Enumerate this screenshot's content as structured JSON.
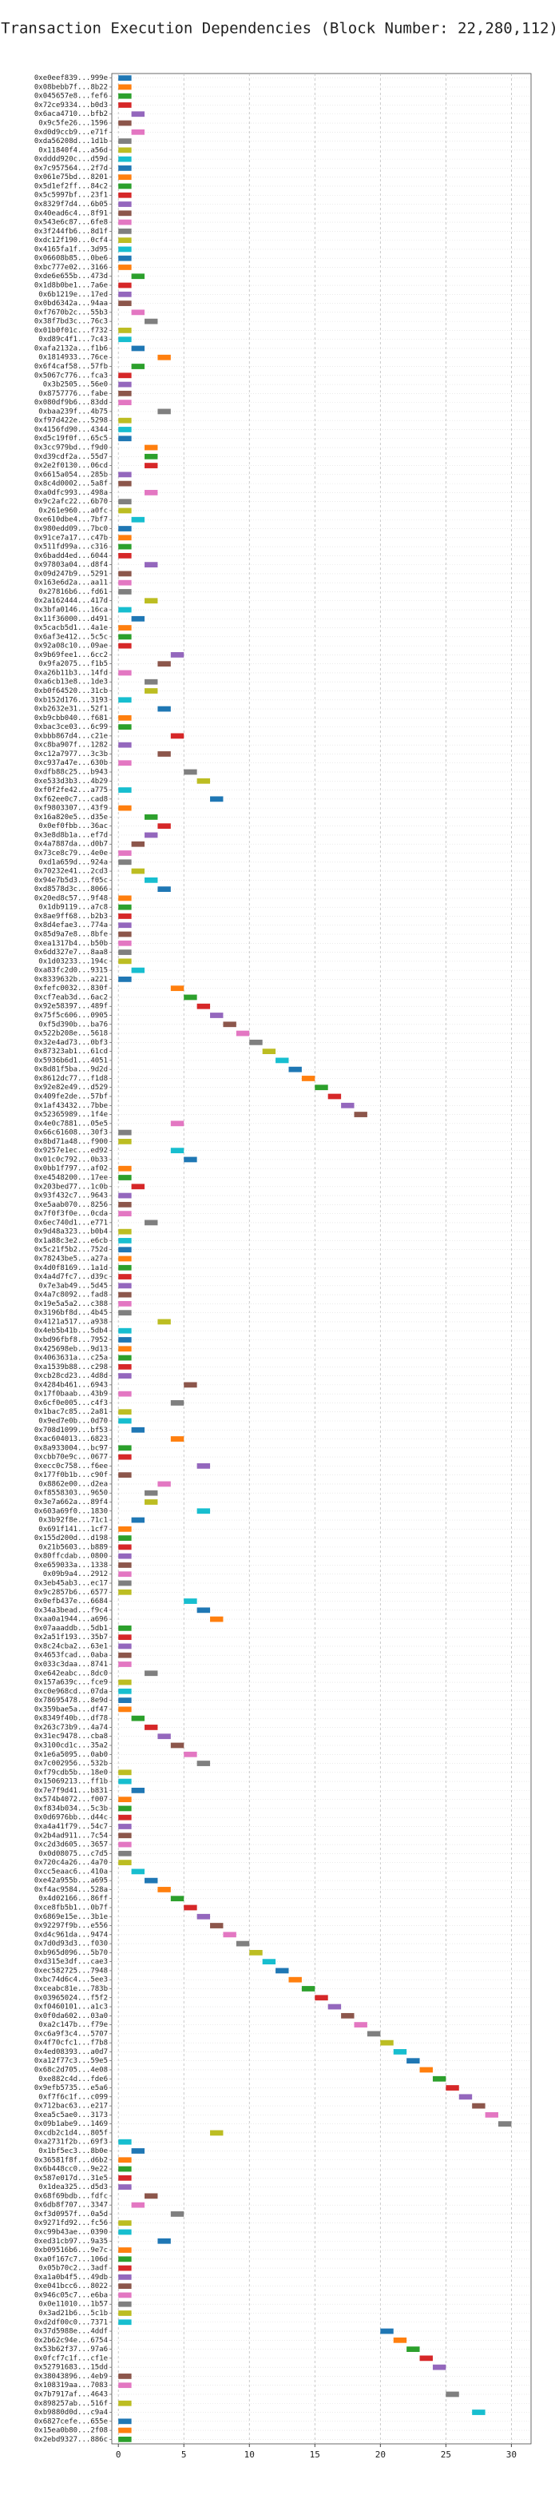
{
  "chart_data": {
    "type": "gantt",
    "title": "Transaction Execution Dependencies (Block Number: 22,280,112)",
    "xlim": [
      -0.5,
      31.5
    ],
    "xticks": [
      0,
      5,
      10,
      15,
      20,
      25,
      30
    ],
    "grid": true,
    "colors": [
      "#1f77b4",
      "#ff7f0e",
      "#2ca02c",
      "#d62728",
      "#9467bd",
      "#8c564b",
      "#e377c2",
      "#7f7f7f",
      "#bcbd22",
      "#17becf"
    ],
    "categories": [
      "0xe0eef839...999e",
      "0x08bebb7f...8b22",
      "0x045657e8...fef6",
      "0x72ce9334...b0d3",
      "0x6aca4710...bfb2",
      "0x9c5fe26...1596",
      "0xd0d9ccb9...e71f",
      "0xda56208d...1d1b",
      "0x11840f4...a56d",
      "0xdddd920c...d59d",
      "0x7c957564...2f7d",
      "0x061e75bd...8201",
      "0x5d1ef2ff...84c2",
      "0x5c5997bf...23f1",
      "0x8329f7d4...6b05",
      "0x40ead6c4...8f91",
      "0x543e6c87...6fe8",
      "0x3f244fb6...8d1f",
      "0xdc12f190...0cf4",
      "0x4165fa1f...3d95",
      "0x06608b85...0be6",
      "0xbc777e02...3166",
      "0xde6e655b...473d",
      "0x1d8b0be1...7a6e",
      "0x6b1219e...17ed",
      "0x0bd6342a...94aa",
      "0xf7670b2c...55b3",
      "0x38f7bd3c...76c3",
      "0x01b0f01c...f732",
      "0xd89c4f1...7c43",
      "0xafa2132a...f1b6",
      "0x1814933...76ce",
      "0x6f4caf58...57fb",
      "0x5067c776...fca3",
      "0x3b2505...56e0",
      "0x8757776...fabe",
      "0x080df9b6...83dd",
      "0xbaa239f...4b75",
      "0xf97d422e...5298",
      "0x4156fd90...4344",
      "0xd5c19f0f...65c5",
      "0x3cc979bd...f9d0",
      "0xd39cdf2a...55d7",
      "0x2e2f0130...06cd",
      "0x6615a054...285b",
      "0x8c4d0002...5a8f",
      "0xa0dfc993...498a",
      "0x9c2afc22...6b70",
      "0x261e960...a0fc",
      "0xe610dbe4...7bf7",
      "0x980edd09...7bc0",
      "0x91ce7a17...c47b",
      "0x511fd99a...c316",
      "0x6badd4ed...6044",
      "0x97803a04...d8f4",
      "0x09d247b9...5291",
      "0x163e6d2a...aa11",
      "0x27816b6...fd61",
      "0x2a162444...417d",
      "0x3bfa0146...16ca",
      "0x11f36000...d491",
      "0x5cacb5d1...4a1e",
      "0x6af3e412...5c5c",
      "0x92a08c10...09ae",
      "0x9b69fee1...6cc2",
      "0x9fa2075...f1b5",
      "0xa26b11b3...14fd",
      "0xa6cb13e8...1de3",
      "0xb0f64520...31cb",
      "0xb152d176...3193",
      "0xb2632e31...52f1",
      "0xb9cbb040...f681",
      "0xbac3ce03...6c99",
      "0xbbb867d4...c21e",
      "0xc8ba907f...1282",
      "0xc12a7977...3c3b",
      "0xc937a47e...630b",
      "0xdfb88c25...b943",
      "0xe533d3b3...4b29",
      "0xf0f2fe42...a775",
      "0xf62ee0c7...cad8",
      "0xf9803307...43f9",
      "0x16a820e5...d35e",
      "0x0ef0fbb...36ac",
      "0x3e8d8b1a...ef7d",
      "0x4a7887da...d0b7",
      "0x73ce8c79...4e0e",
      "0xd1a659d...924a",
      "0x70232e41...2cd3",
      "0x94e7b5d3...f05c",
      "0xd8578d3c...8066",
      "0x20ed8c57...9f48",
      "0x1db9119...a7c8",
      "0x8ae9ff68...b2b3",
      "0x8d4efae3...774a",
      "0x85d9a7e8...8bfe",
      "0xea1317b4...b50b",
      "0x6dd327e7...8aa8",
      "0x1d03233...194c",
      "0xa83fc2d0...9315",
      "0x8339632b...a221",
      "0xfefc0032...830f",
      "0xcf7eab3d...6ac2",
      "0x92e58397...489f",
      "0x75f5c606...0905",
      "0xf5d390b...ba76",
      "0x522b208e...5618",
      "0x32e4ad73...0bf3",
      "0x87323ab1...61cd",
      "0x5936b6d1...4051",
      "0x8d81f5ba...9d2d",
      "0x8612dc77...f1d8",
      "0x92e82e49...d529",
      "0x409fe2de...57bf",
      "0x1af43432...7bbe",
      "0x52365989...1f4e",
      "0x4e0c7881...05e5",
      "0x66c61608...30f3",
      "0x8bd71a48...f900",
      "0x9257e1ec...ed92",
      "0x01c0c792...0b33",
      "0x0bb1f797...af02",
      "0xe4548200...17ee",
      "0x203bed77...1c0b",
      "0x93f432c7...9643",
      "0xe5aab070...8256",
      "0x7f0f3f0e...0cda",
      "0x6ec740d1...e771",
      "0x9d48a323...b0b4",
      "0x1a88c3e2...e6cb",
      "0x5c21f5b2...752d",
      "0x78243be5...a27a",
      "0x4d0f8169...1a1d",
      "0x4a4d7fc7...d39c",
      "0x7e3ab49...5d45",
      "0x4a7c8092...fad8",
      "0x19e5a5a2...c388",
      "0x3196bf8d...4b45",
      "0x4121a517...a938",
      "0x4eb5b41b...5db4",
      "0xbd96fbf8...7952",
      "0x425698eb...9d13",
      "0x4063631a...c25a",
      "0xa1539b88...c298",
      "0xcb28cd23...4d8d",
      "0x4284b461...6943",
      "0x17f0baab...43b9",
      "0x6cf0e005...c4f3",
      "0x1bac7c85...2a81",
      "0x9ed7e0b...0d70",
      "0x708d1099...bf53",
      "0xac604013...6823",
      "0x8a933004...bc97",
      "0xcbb70e9c...0677",
      "0xecc0c758...f6ee",
      "0x177f0b1b...c90f",
      "0x8862e00...d2ea",
      "0xf8558303...9650",
      "0x3e7a662a...89f4",
      "0x603a69f0...1830",
      "0x3b92f8e...71c1",
      "0x691f141...1cf7",
      "0x155d200d...d198",
      "0x21b5603...b889",
      "0x80ffcdab...0800",
      "0xe659033a...1338",
      "0x09b9a4...2912",
      "0x3eb45ab3...ec17",
      "0x9c2857b6...6577",
      "0x0efb437e...6684",
      "0x34a3bead...f9c4",
      "0xaa0a1944...a696",
      "0x07aaaddb...5db1",
      "0x2a51f193...35b7",
      "0x8c24cba2...63e1",
      "0x4653fcad...0aba",
      "0x033c3daa...8741",
      "0xe642eabc...8dc0",
      "0x157a639c...fce9",
      "0xc0e968cd...07da",
      "0x78695478...8e9d",
      "0x359bae5a...df47",
      "0x8349f40b...df78",
      "0x263c73b9...4a74",
      "0x31ec9478...cba8",
      "0x3100cd1c...35a2",
      "0x1e6a5095...0ab0",
      "0x7c002956...532b",
      "0xf79cdb5b...18e0",
      "0x15069213...ff1b",
      "0x7e7f9d41...b831",
      "0x574b4072...f007",
      "0xf834b034...5c3b",
      "0x0d6976bb...d44c",
      "0xa4a41f79...54c7",
      "0x2b4ad911...7c54",
      "0xc2d3d605...3657",
      "0x0d08075...c7d5",
      "0x720c4a26...4a70",
      "0xcc5eaac6...410a",
      "0xe42a955b...a695",
      "0xf4ac9584...528a",
      "0x4d02166...86ff",
      "0xce8fb5b1...0b7f",
      "0x6869e15e...3b1e",
      "0x92297f9b...e556",
      "0xd4c961da...9474",
      "0x7d0d93d3...f030",
      "0xb965d096...5b70",
      "0xd315e3df...cae3",
      "0xec582725...7948",
      "0xbc74d6c4...5ee3",
      "0xceabc81e...783b",
      "0x03965024...f5f2",
      "0xf0460101...a1c3",
      "0x0f0da602...03a0",
      "0xa2c147b...f79e",
      "0xc6a9f3c4...5707",
      "0x4f70cfc1...f7b8",
      "0x4ed08393...a0d7",
      "0xa12f77c3...59e5",
      "0x68c2d705...4e08",
      "0xe882c4d...fde6",
      "0x9efb5735...e5a6",
      "0xf7f6c1f...c099",
      "0x712bac63...e217",
      "0xea5c5ae0...3173",
      "0x09b1abe9...1469",
      "0xcdb2c1d4...805f",
      "0xa2731f2b...69f3",
      "0x1bf5ec3...8b0e",
      "0x36581f8f...d6b2",
      "0x6b448cc0...9e22",
      "0x587e017d...31e5",
      "0x1dea325...d5d3",
      "0x68f69bdb...fdfc",
      "0x6db8f707...3347",
      "0xf3d0957f...0a5d",
      "0x9271fd92...fc56",
      "0xc99b43ae...0390",
      "0xed31cb97...9a35",
      "0xb09516b6...9e7c",
      "0xa0f167c7...106d",
      "0x05b70c2...3adf",
      "0xa1a0b4f5...49db",
      "0xe041bcc6...8022",
      "0x946c05c7...e6ba",
      "0x0e11010...1b57",
      "0x3ad21b6...5c1b",
      "0xd2df00c0...7371",
      "0x37d5988e...4ddf",
      "0x2b62c94e...6754",
      "0x53b62f37...97a6",
      "0x0fcf7c1f...cf1e",
      "0x52791683...15dd",
      "0x38043896...4eb9",
      "0x108319aa...7083",
      "0x7b7917af...4643",
      "0x898257ab...516f",
      "0xb9880d0d...c9a4",
      "0x6827cefe...655e",
      "0x15ea0b80...2f08",
      "0x2ebd9327...886c"
    ],
    "starts": [
      0,
      0,
      0,
      0,
      1,
      0,
      1,
      0,
      0,
      0,
      0,
      0,
      0,
      0,
      0,
      0,
      0,
      0,
      0,
      0,
      0,
      0,
      1,
      0,
      0,
      0,
      1,
      2,
      0,
      0,
      1,
      3,
      1,
      0,
      0,
      0,
      0,
      3,
      0,
      0,
      0,
      2,
      2,
      2,
      0,
      0,
      2,
      0,
      0,
      1,
      0,
      0,
      0,
      0,
      2,
      0,
      0,
      0,
      2,
      0,
      1,
      0,
      0,
      0,
      4,
      3,
      0,
      2,
      2,
      0,
      3,
      0,
      0,
      4,
      0,
      3,
      0,
      5,
      6,
      0,
      7,
      0,
      2,
      3,
      2,
      1,
      0,
      0,
      1,
      2,
      3,
      0,
      0,
      0,
      0,
      0,
      0,
      0,
      0,
      1,
      0,
      4,
      5,
      6,
      7,
      8,
      9,
      10,
      11,
      12,
      13,
      14,
      15,
      16,
      17,
      18,
      4,
      0,
      0,
      4,
      5,
      0,
      0,
      1,
      0,
      0,
      0,
      2,
      0,
      0,
      0,
      0,
      0,
      0,
      0,
      0,
      0,
      0,
      3,
      0,
      0,
      0,
      0,
      0,
      0,
      5,
      0,
      4,
      0,
      0,
      1,
      4,
      0,
      0,
      6,
      0,
      3,
      2,
      2,
      6,
      1,
      0,
      0,
      0,
      0,
      0,
      0,
      0,
      0,
      5,
      6,
      7,
      0,
      0,
      0,
      0,
      0,
      2,
      0,
      0,
      0,
      0,
      1,
      2,
      3,
      4,
      5,
      6,
      0,
      0,
      1,
      0,
      0,
      0,
      0,
      0,
      0,
      0,
      0,
      1,
      2,
      3,
      4,
      5,
      6,
      7,
      8,
      9,
      10,
      11,
      12,
      13,
      14,
      15,
      16,
      17,
      18,
      19,
      20,
      21,
      22,
      23,
      24,
      25,
      26,
      27,
      28,
      29,
      7,
      0,
      1,
      0,
      0,
      0,
      0,
      2,
      1,
      4,
      0,
      0,
      3,
      0,
      0,
      0,
      0,
      0,
      0,
      0,
      0,
      0,
      20,
      21,
      22,
      23,
      24,
      0,
      0,
      25,
      0,
      27,
      0,
      0,
      0
    ],
    "ends": [
      1,
      1,
      1,
      1,
      2,
      1,
      2,
      1,
      1,
      1,
      1,
      1,
      1,
      1,
      1,
      1,
      1,
      1,
      1,
      1,
      1,
      1,
      2,
      1,
      1,
      1,
      2,
      3,
      1,
      1,
      2,
      4,
      2,
      1,
      1,
      1,
      1,
      4,
      1,
      1,
      1,
      3,
      3,
      3,
      1,
      1,
      3,
      1,
      1,
      2,
      1,
      1,
      1,
      1,
      3,
      1,
      1,
      1,
      3,
      1,
      2,
      1,
      1,
      1,
      5,
      4,
      1,
      3,
      3,
      1,
      4,
      1,
      1,
      5,
      1,
      4,
      1,
      6,
      7,
      1,
      8,
      1,
      3,
      4,
      3,
      2,
      1,
      1,
      2,
      3,
      4,
      1,
      1,
      1,
      1,
      1,
      1,
      1,
      1,
      2,
      1,
      5,
      6,
      7,
      8,
      9,
      10,
      11,
      12,
      13,
      14,
      15,
      16,
      17,
      18,
      19,
      5,
      1,
      1,
      5,
      6,
      1,
      1,
      2,
      1,
      1,
      1,
      3,
      1,
      1,
      1,
      1,
      1,
      1,
      1,
      1,
      1,
      1,
      4,
      1,
      1,
      1,
      1,
      1,
      1,
      6,
      1,
      5,
      1,
      1,
      2,
      5,
      1,
      1,
      7,
      1,
      4,
      3,
      3,
      7,
      2,
      1,
      1,
      1,
      1,
      1,
      1,
      1,
      1,
      6,
      7,
      8,
      1,
      1,
      1,
      1,
      1,
      3,
      1,
      1,
      1,
      1,
      2,
      3,
      4,
      5,
      6,
      7,
      1,
      1,
      2,
      1,
      1,
      1,
      1,
      1,
      1,
      1,
      1,
      2,
      3,
      4,
      5,
      6,
      7,
      8,
      9,
      10,
      11,
      12,
      13,
      14,
      15,
      16,
      17,
      18,
      19,
      20,
      21,
      22,
      23,
      24,
      25,
      26,
      27,
      28,
      29,
      30,
      8,
      1,
      2,
      1,
      1,
      1,
      1,
      3,
      2,
      5,
      1,
      1,
      4,
      1,
      1,
      1,
      1,
      1,
      1,
      1,
      1,
      1,
      21,
      22,
      23,
      24,
      25,
      1,
      1,
      26,
      1,
      28,
      1,
      1,
      1
    ]
  }
}
